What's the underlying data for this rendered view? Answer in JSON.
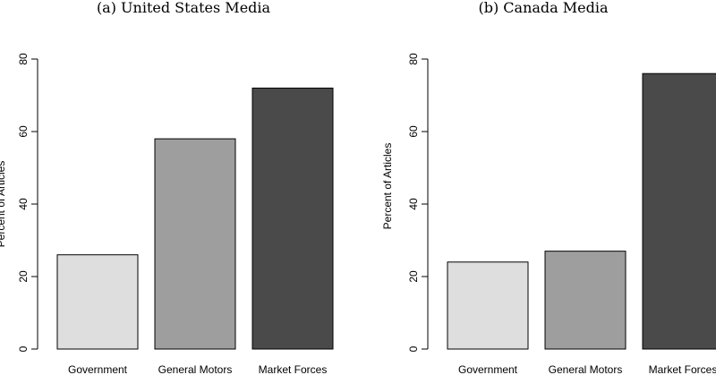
{
  "chart_data": [
    {
      "type": "bar",
      "title": "(a) United States Media",
      "ylabel": "Percent of Articles",
      "xlabel": "",
      "categories": [
        "Government",
        "General Motors",
        "Market Forces"
      ],
      "values": [
        26,
        58,
        72
      ],
      "colors": [
        "#dedede",
        "#9e9e9e",
        "#4a4a4a"
      ],
      "ylim": [
        0,
        80
      ],
      "yticks": [
        0,
        20,
        40,
        60,
        80
      ],
      "grid": false
    },
    {
      "type": "bar",
      "title": "(b) Canada Media",
      "ylabel": "Percent of Articles",
      "xlabel": "",
      "categories": [
        "Government",
        "General Motors",
        "Market Forces"
      ],
      "values": [
        24,
        27,
        76
      ],
      "colors": [
        "#dedede",
        "#9e9e9e",
        "#4a4a4a"
      ],
      "ylim": [
        0,
        80
      ],
      "yticks": [
        0,
        20,
        40,
        60,
        80
      ],
      "grid": false
    }
  ]
}
